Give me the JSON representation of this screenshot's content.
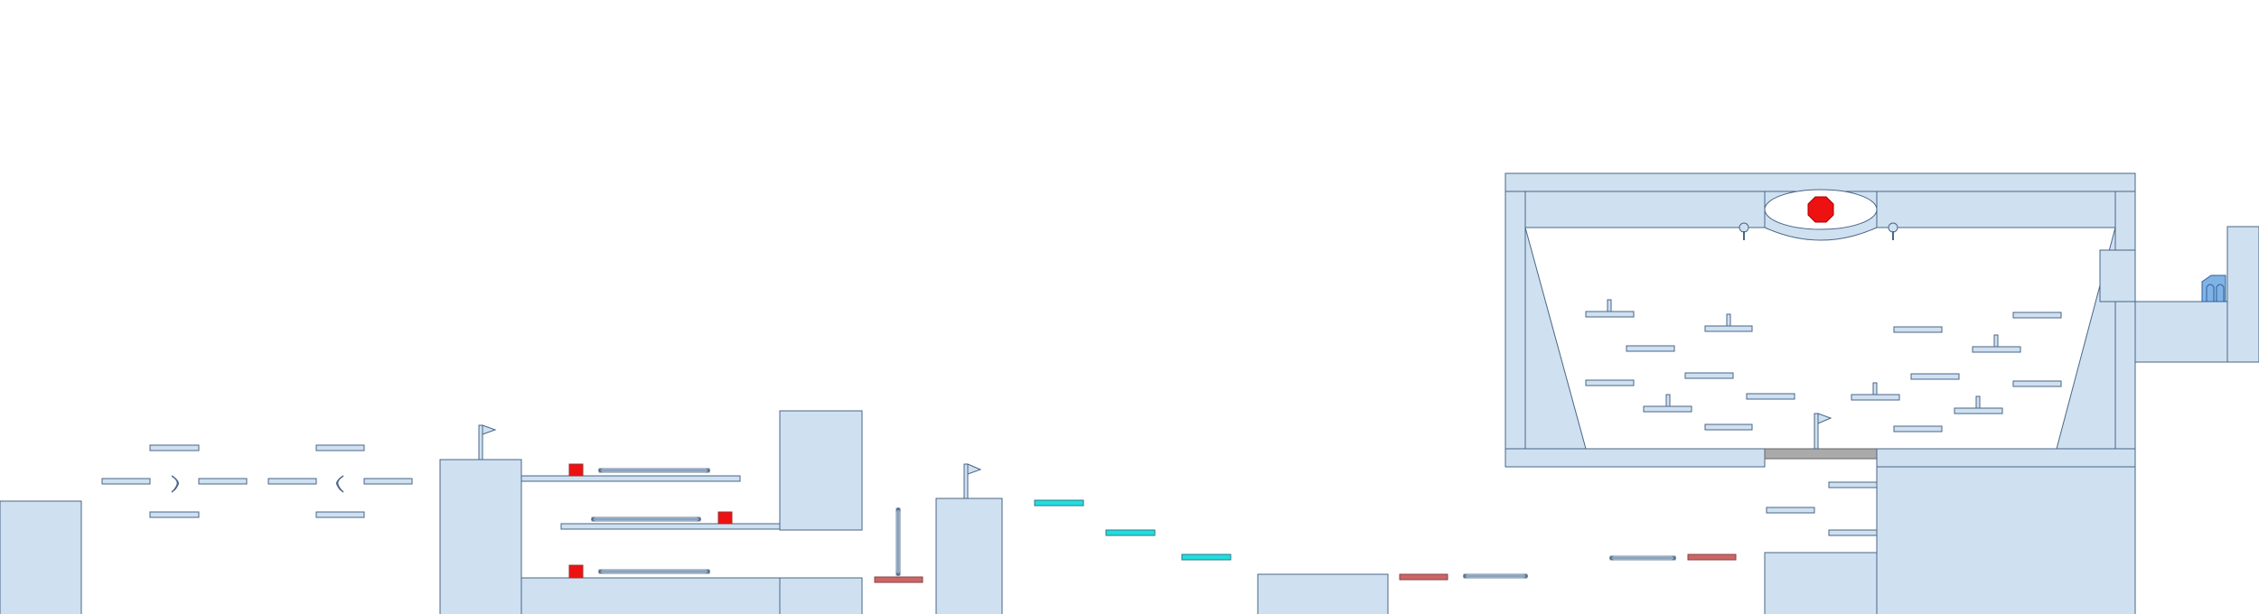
{
  "level": {
    "background": "#ffffff",
    "colors": {
      "block_fill": "#cfe0f1",
      "outline": "#4a6686",
      "enemy": "#ee1111",
      "hazard": "#cc6666",
      "bounce": "#22dddd",
      "gate": "#aaaaaa",
      "exit": "#7fb3e6"
    },
    "icons": {
      "checkpoint": "flag-icon",
      "gem": "red-gem-icon",
      "exit": "exit-door-icon",
      "mover": "double-arrow-icon",
      "spring": "spring-icon"
    }
  }
}
